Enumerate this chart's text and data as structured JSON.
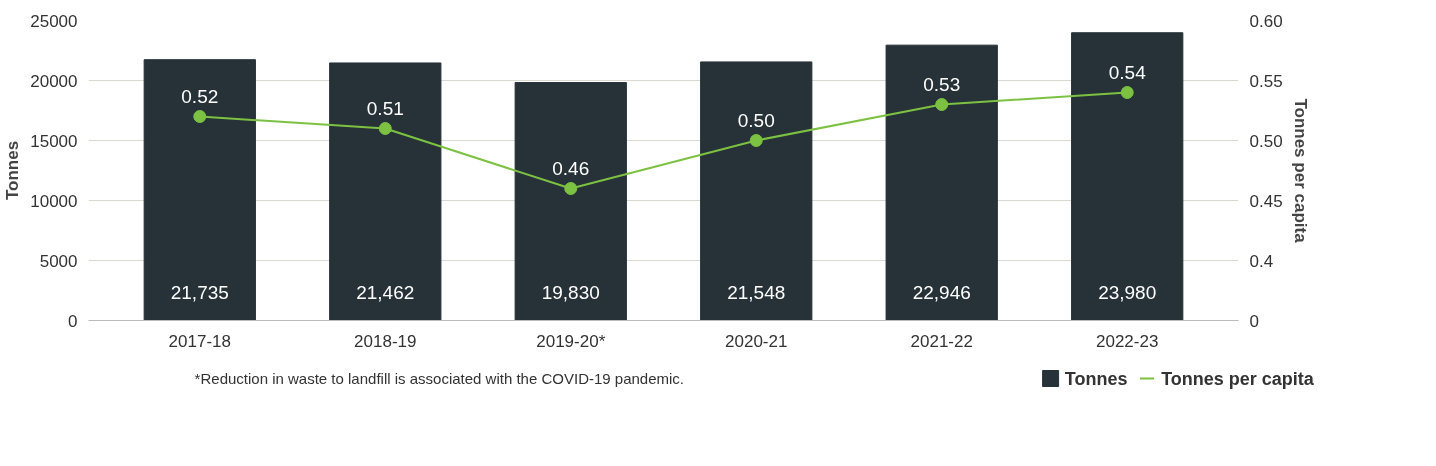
{
  "chart_data": {
    "type": "bar",
    "categories": [
      "2017-18",
      "2018-19",
      "2019-20*",
      "2020-21",
      "2021-22",
      "2022-23"
    ],
    "series": [
      {
        "name": "Tonnes",
        "color": "#263238",
        "values": [
          21735,
          21462,
          19830,
          21548,
          22946,
          23980
        ],
        "value_labels": [
          "21,735",
          "21,462",
          "19,830",
          "21,548",
          "22,946",
          "23,980"
        ]
      },
      {
        "name": "Tonnes per capita",
        "type": "line",
        "axis": "y2",
        "color": "#7cc142",
        "values": [
          0.52,
          0.51,
          0.46,
          0.5,
          0.53,
          0.54
        ],
        "value_labels": [
          "0.52",
          "0.51",
          "0.46",
          "0.50",
          "0.53",
          "0.54"
        ]
      }
    ],
    "ylabel": "Tonnes",
    "y2label": "Tonnes per capita",
    "ylim": [
      0,
      25000
    ],
    "yticks": [
      0,
      5000,
      10000,
      15000,
      20000,
      25000
    ],
    "y2lim": [
      0.35,
      0.6
    ],
    "y2ticks": [
      {
        "value": 0.35,
        "label": "0"
      },
      0.4,
      0.45,
      {
        "value": 0.5,
        "label": "0.50"
      },
      0.55,
      {
        "value": 0.6,
        "label": "0.60"
      }
    ],
    "grid": "y",
    "legend": "bottom right",
    "marker": "circle",
    "line_style": "solid",
    "annotations": [
      "*Reduction in waste to landfill is associated with the COVID-19 pandemic."
    ]
  }
}
